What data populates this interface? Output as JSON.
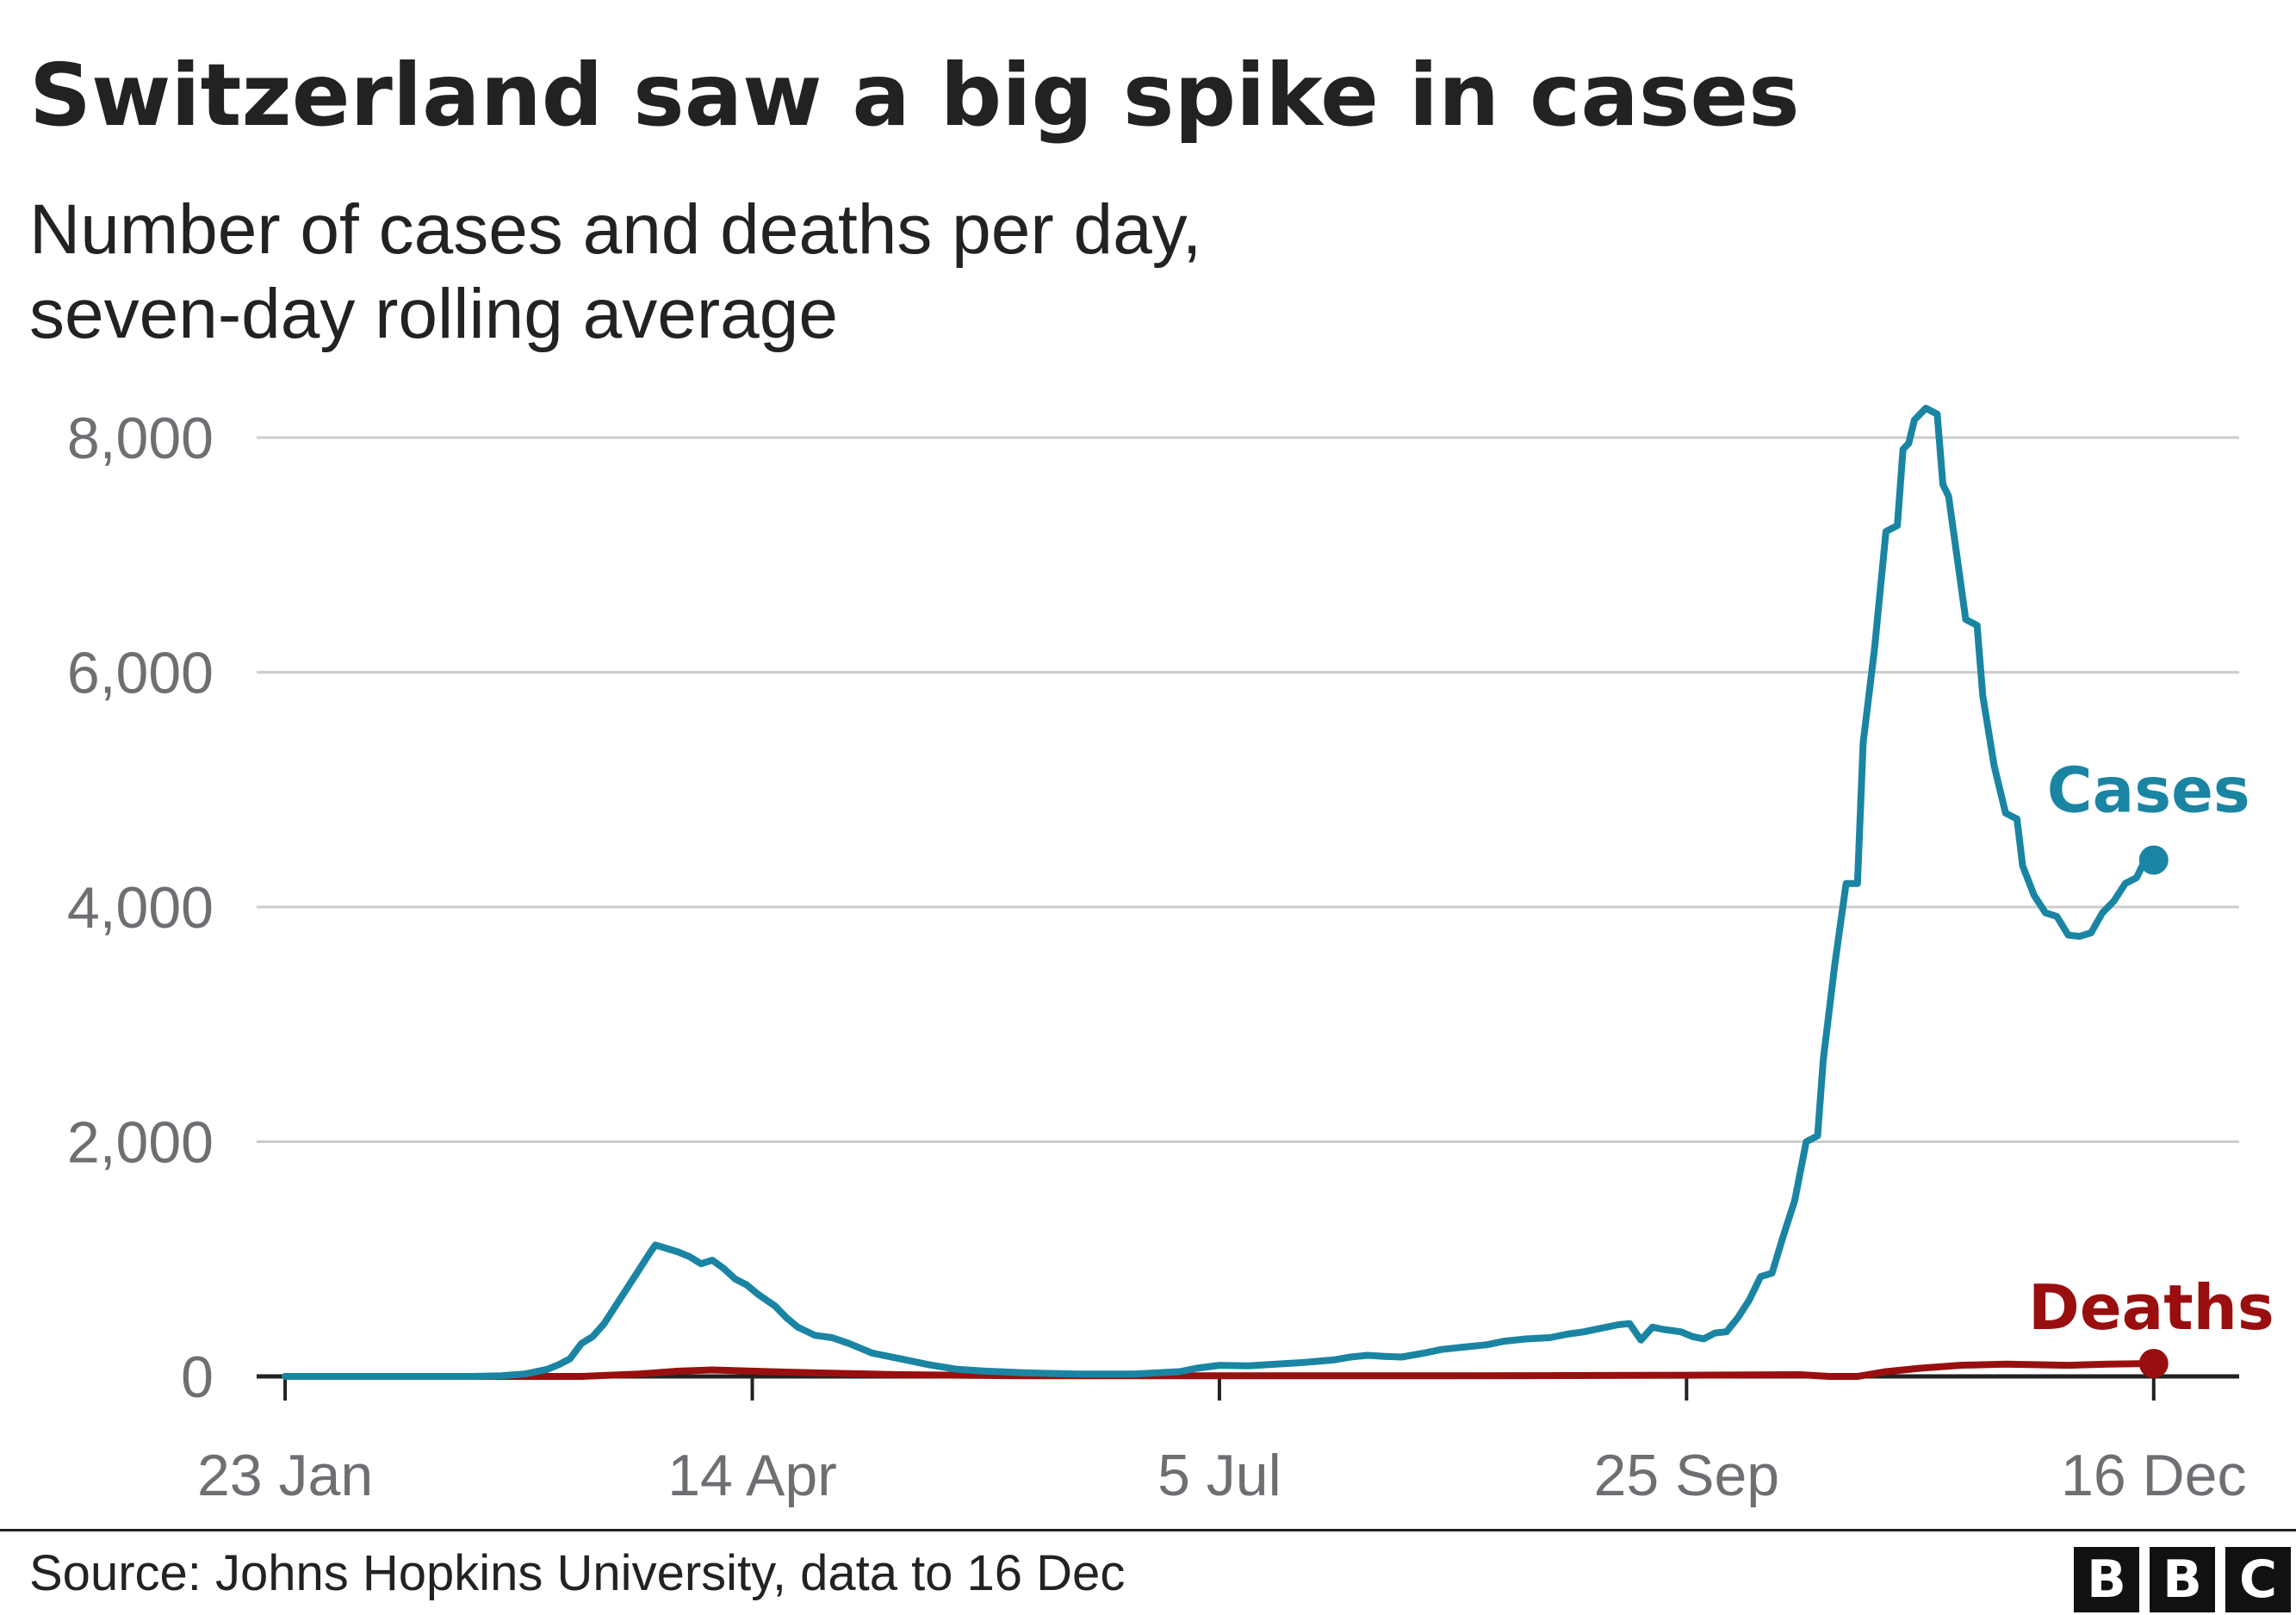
{
  "title": "Switzerland saw a big spike in cases",
  "subtitle": [
    "Number of cases and deaths per day,",
    "seven-day rolling average"
  ],
  "source": "Source: Johns Hopkins University, data to 16 Dec",
  "logo_letters": [
    "B",
    "B",
    "C"
  ],
  "colors": {
    "cases": "#1a85a3",
    "deaths": "#990f0f",
    "text": "#222222",
    "axis": "#222222",
    "grid": "#cccccc",
    "tick_text": "#6e6e73"
  },
  "chart_data": {
    "type": "line",
    "title": "Switzerland saw a big spike in cases",
    "subtitle": "Number of cases and deaths per day, seven-day rolling average",
    "xlabel": "",
    "ylabel": "",
    "ylim": [
      0,
      8000
    ],
    "yticks": [
      0,
      2000,
      4000,
      6000,
      8000
    ],
    "ytick_labels": [
      "0",
      "2,000",
      "4,000",
      "6,000",
      "8,000"
    ],
    "xlim": [
      "2020-01-18",
      "2020-12-31"
    ],
    "xticks": [
      "2020-01-23",
      "2020-04-14",
      "2020-07-05",
      "2020-09-25",
      "2020-12-16"
    ],
    "xtick_labels": [
      "23 Jan",
      "14 Apr",
      "5 Jul",
      "25 Sep",
      "16 Dec"
    ],
    "grid": true,
    "legend": "direct labels at line ends",
    "series": [
      {
        "name": "Cases",
        "color": "#1a85a3",
        "points": [
          [
            "2020-01-23",
            0
          ],
          [
            "2020-02-25",
            0
          ],
          [
            "2020-03-01",
            5
          ],
          [
            "2020-03-05",
            20
          ],
          [
            "2020-03-09",
            60
          ],
          [
            "2020-03-11",
            100
          ],
          [
            "2020-03-13",
            150
          ],
          [
            "2020-03-15",
            280
          ],
          [
            "2020-03-17",
            340
          ],
          [
            "2020-03-19",
            450
          ],
          [
            "2020-03-21",
            600
          ],
          [
            "2020-03-23",
            750
          ],
          [
            "2020-03-25",
            900
          ],
          [
            "2020-03-27",
            1050
          ],
          [
            "2020-03-28",
            1120
          ],
          [
            "2020-03-30",
            1090
          ],
          [
            "2020-04-01",
            1060
          ],
          [
            "2020-04-03",
            1020
          ],
          [
            "2020-04-05",
            960
          ],
          [
            "2020-04-07",
            990
          ],
          [
            "2020-04-09",
            920
          ],
          [
            "2020-04-11",
            830
          ],
          [
            "2020-04-13",
            780
          ],
          [
            "2020-04-15",
            700
          ],
          [
            "2020-04-18",
            600
          ],
          [
            "2020-04-20",
            500
          ],
          [
            "2020-04-22",
            420
          ],
          [
            "2020-04-25",
            350
          ],
          [
            "2020-04-28",
            330
          ],
          [
            "2020-05-01",
            280
          ],
          [
            "2020-05-05",
            200
          ],
          [
            "2020-05-10",
            150
          ],
          [
            "2020-05-15",
            100
          ],
          [
            "2020-05-20",
            60
          ],
          [
            "2020-05-25",
            45
          ],
          [
            "2020-06-01",
            30
          ],
          [
            "2020-06-10",
            20
          ],
          [
            "2020-06-20",
            20
          ],
          [
            "2020-06-28",
            40
          ],
          [
            "2020-07-01",
            70
          ],
          [
            "2020-07-05",
            95
          ],
          [
            "2020-07-10",
            90
          ],
          [
            "2020-07-15",
            105
          ],
          [
            "2020-07-20",
            120
          ],
          [
            "2020-07-25",
            140
          ],
          [
            "2020-07-28",
            165
          ],
          [
            "2020-07-31",
            180
          ],
          [
            "2020-08-03",
            170
          ],
          [
            "2020-08-06",
            165
          ],
          [
            "2020-08-10",
            200
          ],
          [
            "2020-08-13",
            230
          ],
          [
            "2020-08-17",
            250
          ],
          [
            "2020-08-21",
            270
          ],
          [
            "2020-08-24",
            300
          ],
          [
            "2020-08-28",
            320
          ],
          [
            "2020-09-01",
            330
          ],
          [
            "2020-09-04",
            360
          ],
          [
            "2020-09-07",
            380
          ],
          [
            "2020-09-10",
            410
          ],
          [
            "2020-09-13",
            440
          ],
          [
            "2020-09-15",
            450
          ],
          [
            "2020-09-17",
            310
          ],
          [
            "2020-09-19",
            420
          ],
          [
            "2020-09-21",
            400
          ],
          [
            "2020-09-24",
            380
          ],
          [
            "2020-09-26",
            340
          ],
          [
            "2020-09-28",
            320
          ],
          [
            "2020-09-30",
            370
          ],
          [
            "2020-10-02",
            380
          ],
          [
            "2020-10-04",
            500
          ],
          [
            "2020-10-06",
            650
          ],
          [
            "2020-10-08",
            850
          ],
          [
            "2020-10-10",
            880
          ],
          [
            "2020-10-12",
            1200
          ],
          [
            "2020-10-14",
            1500
          ],
          [
            "2020-10-16",
            2000
          ],
          [
            "2020-10-18",
            2050
          ],
          [
            "2020-10-19",
            2700
          ],
          [
            "2020-10-21",
            3500
          ],
          [
            "2020-10-23",
            4200
          ],
          [
            "2020-10-25",
            4200
          ],
          [
            "2020-10-26",
            5400
          ],
          [
            "2020-10-28",
            6200
          ],
          [
            "2020-10-30",
            7200
          ],
          [
            "2020-11-01",
            7250
          ],
          [
            "2020-11-02",
            7900
          ],
          [
            "2020-11-03",
            7950
          ],
          [
            "2020-11-04",
            8150
          ],
          [
            "2020-11-06",
            8250
          ],
          [
            "2020-11-08",
            8200
          ],
          [
            "2020-11-09",
            7600
          ],
          [
            "2020-11-10",
            7500
          ],
          [
            "2020-11-12",
            6800
          ],
          [
            "2020-11-13",
            6450
          ],
          [
            "2020-11-15",
            6400
          ],
          [
            "2020-11-16",
            5800
          ],
          [
            "2020-11-18",
            5200
          ],
          [
            "2020-11-20",
            4800
          ],
          [
            "2020-11-22",
            4750
          ],
          [
            "2020-11-23",
            4350
          ],
          [
            "2020-11-25",
            4100
          ],
          [
            "2020-11-27",
            3950
          ],
          [
            "2020-11-29",
            3920
          ],
          [
            "2020-12-01",
            3760
          ],
          [
            "2020-12-03",
            3750
          ],
          [
            "2020-12-05",
            3780
          ],
          [
            "2020-12-07",
            3950
          ],
          [
            "2020-12-09",
            4050
          ],
          [
            "2020-12-11",
            4200
          ],
          [
            "2020-12-13",
            4250
          ],
          [
            "2020-12-14",
            4350
          ],
          [
            "2020-12-16",
            4400
          ]
        ]
      },
      {
        "name": "Deaths",
        "color": "#990f0f",
        "points": [
          [
            "2020-01-23",
            0
          ],
          [
            "2020-03-15",
            0
          ],
          [
            "2020-03-25",
            20
          ],
          [
            "2020-04-01",
            45
          ],
          [
            "2020-04-07",
            55
          ],
          [
            "2020-04-14",
            45
          ],
          [
            "2020-04-25",
            30
          ],
          [
            "2020-05-10",
            15
          ],
          [
            "2020-06-01",
            5
          ],
          [
            "2020-07-05",
            5
          ],
          [
            "2020-08-15",
            5
          ],
          [
            "2020-09-25",
            10
          ],
          [
            "2020-10-15",
            15
          ],
          [
            "2020-10-20",
            0
          ],
          [
            "2020-10-25",
            0
          ],
          [
            "2020-10-30",
            40
          ],
          [
            "2020-11-05",
            70
          ],
          [
            "2020-11-12",
            95
          ],
          [
            "2020-11-20",
            105
          ],
          [
            "2020-11-25",
            100
          ],
          [
            "2020-12-01",
            95
          ],
          [
            "2020-12-08",
            105
          ],
          [
            "2020-12-16",
            110
          ]
        ]
      }
    ]
  }
}
